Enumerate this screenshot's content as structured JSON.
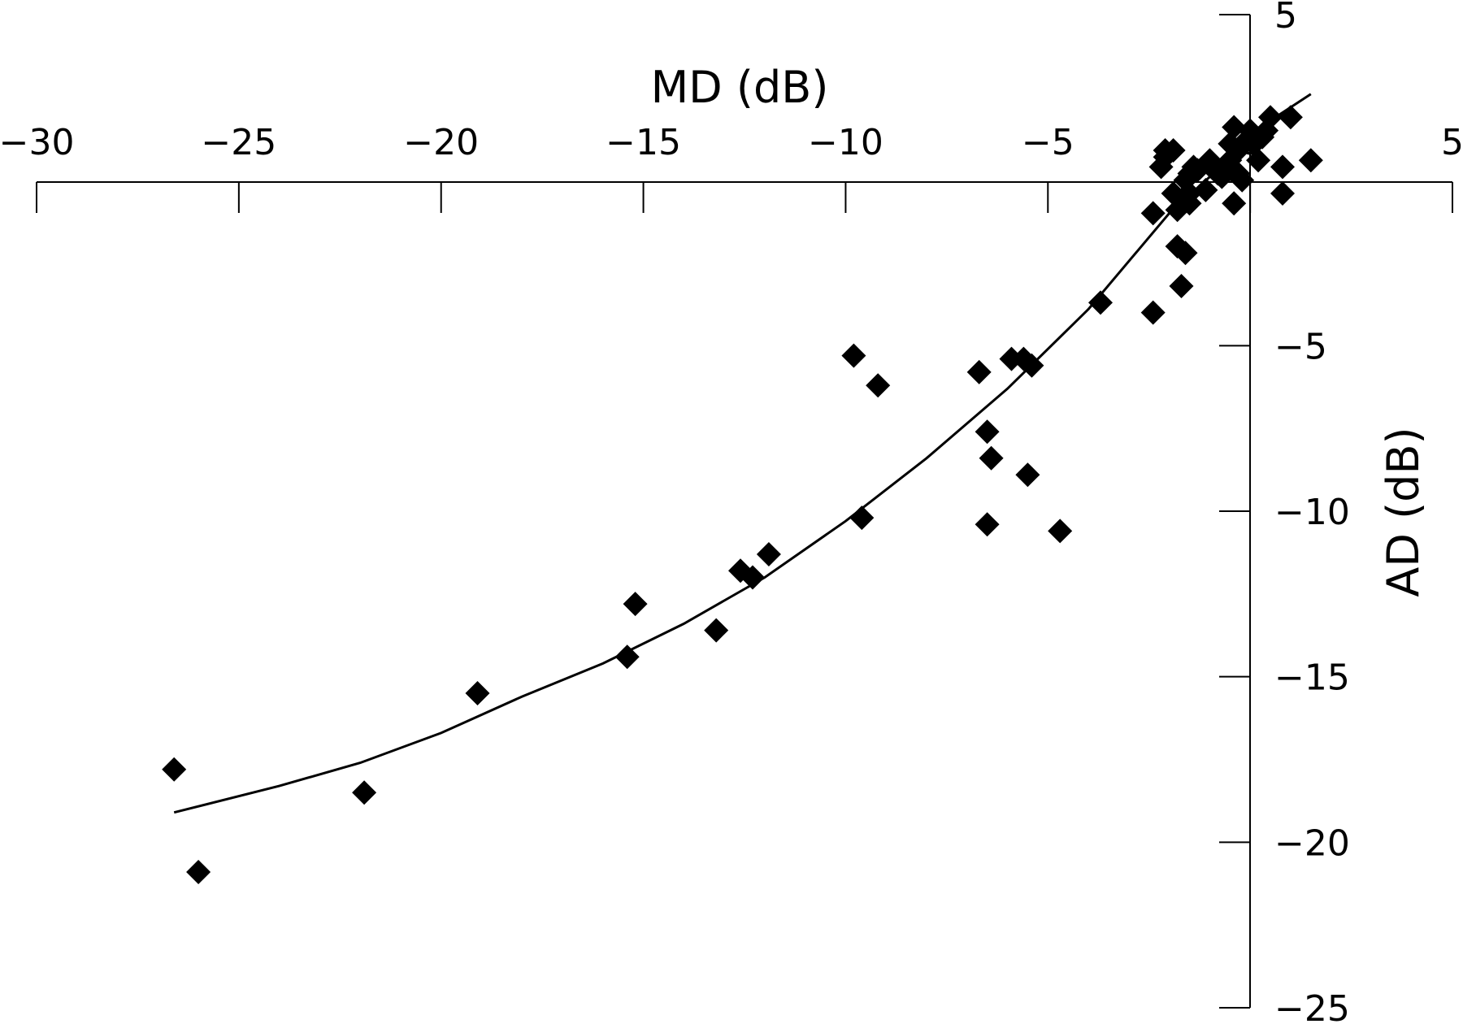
{
  "chart_data": {
    "type": "scatter",
    "xlabel": "MD (dB)",
    "ylabel": "AD (dB)",
    "xlim": [
      -30,
      5
    ],
    "ylim": [
      -25,
      5
    ],
    "xticks": [
      -30,
      -25,
      -20,
      -15,
      -10,
      -5,
      0,
      5
    ],
    "xtick_labels": [
      "−30",
      "−25",
      "−20",
      "−15",
      "−10",
      "−5",
      "0",
      "5"
    ],
    "yticks": [
      5,
      0,
      -5,
      -10,
      -15,
      -20,
      -25
    ],
    "ytick_labels": [
      "5",
      "",
      "−5",
      "−10",
      "−15",
      "−20",
      "−25"
    ],
    "x_axis_position": "top",
    "y_axis_position": "right",
    "grid": false,
    "marker": "diamond",
    "color": "#000000",
    "series": [
      {
        "points": [
          [
            -26.6,
            -17.8
          ],
          [
            -26.0,
            -20.9
          ],
          [
            -21.9,
            -18.5
          ],
          [
            -19.1,
            -15.5
          ],
          [
            -15.4,
            -14.4
          ],
          [
            -15.2,
            -12.8
          ],
          [
            -13.2,
            -13.6
          ],
          [
            -12.6,
            -11.8
          ],
          [
            -12.3,
            -12.0
          ],
          [
            -11.9,
            -11.3
          ],
          [
            -9.8,
            -5.3
          ],
          [
            -9.6,
            -10.2
          ],
          [
            -9.2,
            -6.2
          ],
          [
            -6.7,
            -5.8
          ],
          [
            -6.5,
            -7.6
          ],
          [
            -6.4,
            -8.4
          ],
          [
            -6.5,
            -10.4
          ],
          [
            -5.9,
            -5.4
          ],
          [
            -5.6,
            -5.4
          ],
          [
            -5.4,
            -5.6
          ],
          [
            -5.5,
            -8.9
          ],
          [
            -4.7,
            -10.6
          ],
          [
            -3.7,
            -3.7
          ],
          [
            -2.4,
            -4.0
          ],
          [
            -2.4,
            -1.0
          ],
          [
            -2.2,
            0.4
          ],
          [
            -2.1,
            0.7
          ],
          [
            -2.1,
            0.9
          ],
          [
            -1.9,
            0.9
          ],
          [
            -1.9,
            -0.4
          ],
          [
            -1.8,
            -0.9
          ],
          [
            -1.8,
            -2.0
          ],
          [
            -1.7,
            -3.2
          ],
          [
            -1.7,
            -0.6
          ],
          [
            -1.6,
            -2.2
          ],
          [
            -1.6,
            0.0
          ],
          [
            -1.5,
            -0.4
          ],
          [
            -1.5,
            -0.7
          ],
          [
            -1.5,
            0.2
          ],
          [
            -1.4,
            0.4
          ],
          [
            -1.3,
            0.3
          ],
          [
            -1.1,
            -0.3
          ],
          [
            -1.0,
            0.6
          ],
          [
            -0.9,
            0.4
          ],
          [
            -0.8,
            0.2
          ],
          [
            -0.7,
            0.1
          ],
          [
            -0.6,
            0.4
          ],
          [
            -0.5,
            0.6
          ],
          [
            -0.5,
            1.1
          ],
          [
            -0.4,
            -0.7
          ],
          [
            -0.4,
            1.6
          ],
          [
            -0.3,
            0.2
          ],
          [
            -0.3,
            0.9
          ],
          [
            -0.2,
            0.0
          ],
          [
            -0.1,
            1.2
          ],
          [
            0.0,
            1.5
          ],
          [
            0.1,
            1.1
          ],
          [
            0.2,
            0.6
          ],
          [
            0.3,
            1.3
          ],
          [
            0.4,
            1.5
          ],
          [
            0.5,
            1.9
          ],
          [
            0.8,
            0.4
          ],
          [
            0.8,
            -0.4
          ],
          [
            1.0,
            1.9
          ],
          [
            1.5,
            0.6
          ]
        ]
      }
    ],
    "fit_curve": {
      "type": "line",
      "x": [
        -26.6,
        -24.0,
        -22.0,
        -20.0,
        -18.0,
        -16.0,
        -14.0,
        -12.0,
        -10.0,
        -8.0,
        -6.0,
        -4.0,
        -2.0,
        -1.0,
        0.0,
        0.5,
        1.5
      ],
      "y": [
        -19.1,
        -18.3,
        -17.6,
        -16.7,
        -15.6,
        -14.6,
        -13.4,
        -12.0,
        -10.3,
        -8.4,
        -6.3,
        -3.9,
        -1.0,
        0.1,
        1.3,
        1.8,
        2.6
      ]
    }
  }
}
